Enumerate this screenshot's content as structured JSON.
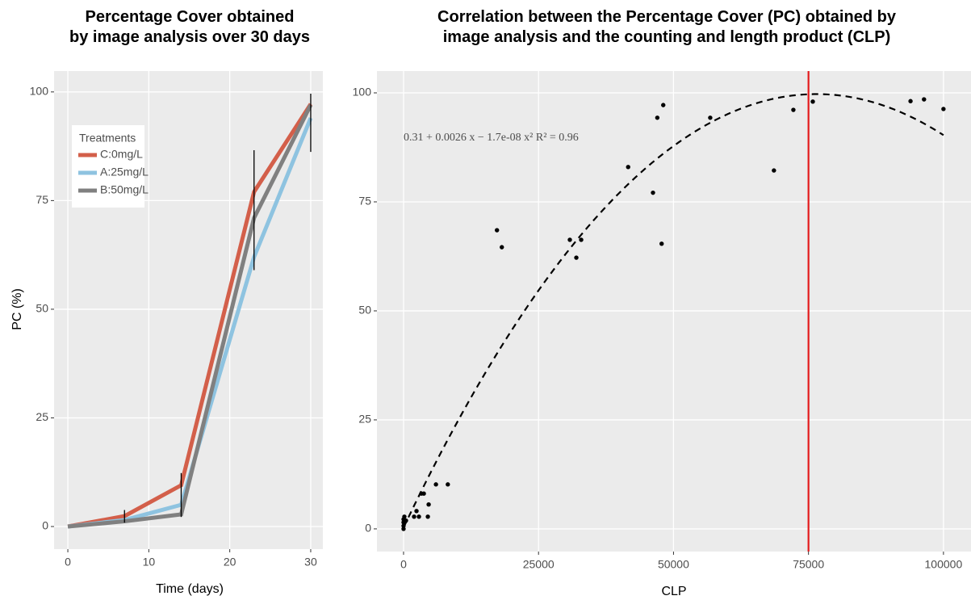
{
  "chart_data": [
    {
      "type": "line",
      "title": "Percentage Cover obtained\nby image analysis over 30 days",
      "x_label": "Time (days)",
      "y_label": "PC (%)",
      "x": [
        0,
        7,
        14,
        23,
        30
      ],
      "series": [
        {
          "name": "C:0mg/L",
          "color": "#d35f4a",
          "values": [
            0,
            2.4,
            9.5,
            77,
            97.2
          ]
        },
        {
          "name": "A:25mg/L",
          "color": "#8ec3e0",
          "values": [
            0,
            1.5,
            5,
            62,
            94
          ]
        },
        {
          "name": "B:50mg/L",
          "color": "#808080",
          "values": [
            0,
            1.2,
            2.8,
            71,
            97
          ]
        }
      ],
      "error_bars": {
        "x": [
          7,
          14,
          23,
          30
        ],
        "lower": [
          0.9,
          2.2,
          59,
          86.2
        ],
        "upper": [
          3.8,
          12.3,
          86.6,
          99.6
        ]
      },
      "legend_title": "Treatments",
      "legend": "top-left",
      "xlim": [
        -1.7,
        31.5
      ],
      "xticks": [
        0,
        10,
        20,
        30
      ],
      "ylim": [
        -5.2,
        104.8
      ],
      "yticks": [
        0,
        25,
        50,
        75,
        100
      ],
      "grid": true
    },
    {
      "type": "scatter",
      "title": "Correlation between the Percentage Cover (PC) obtained by\nimage analysis and the counting and length product (CLP)",
      "x_label": "CLP",
      "annotation": "0.31 + 0.0026 x − 1.7e-08 x²    R² = 0.96",
      "fit": [
        0.31,
        0.0026,
        -1.7e-08
      ],
      "vline": 75000,
      "vline_color": "#e31a1c",
      "color": "#000000",
      "x": [
        0,
        0,
        0,
        0,
        150,
        450,
        1950,
        2400,
        2850,
        3300,
        3750,
        4500,
        4650,
        6000,
        8200,
        17300,
        18200,
        30800,
        32000,
        32900,
        41600,
        46200,
        47000,
        48100,
        47800,
        56800,
        68600,
        72200,
        75800,
        93900,
        96400,
        100000
      ],
      "values": [
        0,
        0.7,
        1.5,
        2.2,
        2.8,
        1.9,
        2.8,
        4.1,
        2.8,
        8.1,
        8.1,
        2.8,
        5.6,
        10.2,
        10.2,
        68.5,
        64.6,
        66.3,
        62.2,
        66.3,
        83,
        77.1,
        94.3,
        97.2,
        65.4,
        94.3,
        82.2,
        96.1,
        98,
        98.1,
        98.5,
        96.3
      ],
      "xlim": [
        -4930,
        105100
      ],
      "xticks": [
        0,
        25000,
        50000,
        75000,
        100000
      ],
      "ylim": [
        -5.2,
        105
      ],
      "yticks": [
        0,
        25,
        50,
        75,
        100
      ],
      "grid": true
    }
  ]
}
